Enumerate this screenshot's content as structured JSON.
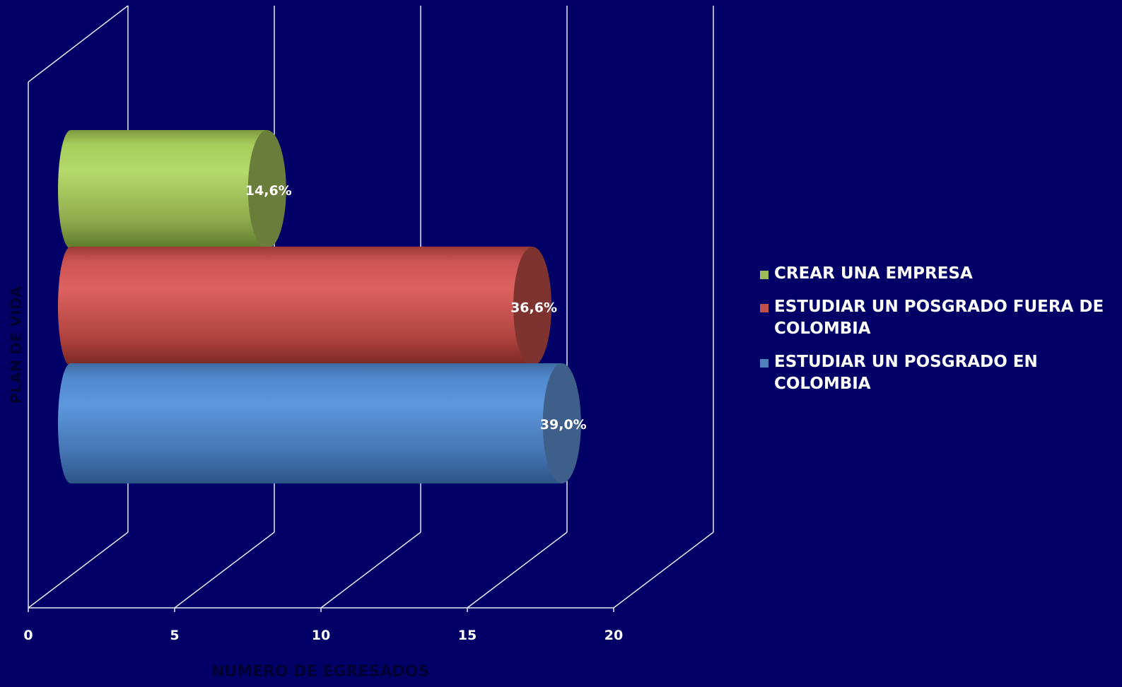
{
  "chart_data": {
    "type": "bar",
    "orientation": "horizontal",
    "style": "3d-cylinder",
    "title": "",
    "xlabel": "NUMERO DE EGRESADOS",
    "ylabel": "PLAN DE VIDA",
    "xlim": [
      0,
      20
    ],
    "x_ticks": [
      "0",
      "5",
      "10",
      "15",
      "20"
    ],
    "grid": true,
    "legend_position": "right",
    "series": [
      {
        "name": "CREAR UNA EMPRESA",
        "value": 7.5,
        "label": "14,6%",
        "color": "#9BBB59"
      },
      {
        "name": "ESTUDIAR UN POSGRADO FUERA DE COLOMBIA",
        "value": 16.5,
        "label": "36,6%",
        "color": "#C0504D"
      },
      {
        "name": "ESTUDIAR UN POSGRADO EN COLOMBIA",
        "value": 17.5,
        "label": "39,0%",
        "color": "#4F81BD"
      }
    ],
    "legend": [
      {
        "lines": [
          "CREAR UNA EMPRESA"
        ],
        "color": "#9BBB59"
      },
      {
        "lines": [
          "ESTUDIAR UN POSGRADO FUERA DE",
          "COLOMBIA"
        ],
        "color": "#C0504D"
      },
      {
        "lines": [
          "ESTUDIAR UN POSGRADO EN",
          "COLOMBIA"
        ],
        "color": "#4F81BD"
      }
    ],
    "colors": {
      "background": "#000066",
      "grid": "#E8E8F0",
      "axis_text": "#FFFFFF",
      "axis_title": "#000033"
    }
  }
}
